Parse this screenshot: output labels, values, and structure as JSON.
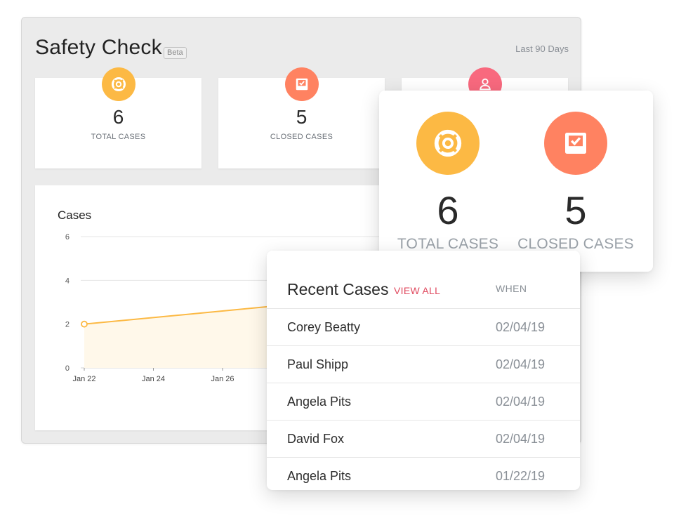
{
  "header": {
    "title": "Safety Check",
    "beta_label": "Beta",
    "range_label": "Last 90 Days"
  },
  "stats": [
    {
      "value": "6",
      "label": "TOTAL CASES",
      "icon": "life-ring-icon",
      "color": "#fcb944"
    },
    {
      "value": "5",
      "label": "CLOSED CASES",
      "icon": "inbox-check-icon",
      "color": "#ff8261"
    },
    {
      "icon": "user-icon",
      "color": "#f8697e"
    }
  ],
  "chart": {
    "title": "Cases"
  },
  "chart_data": {
    "type": "area",
    "title": "Cases",
    "x_ticks": [
      "Jan 22",
      "Jan 24",
      "Jan 26"
    ],
    "y_ticks": [
      "0",
      "2",
      "4",
      "6"
    ],
    "ylim": [
      0,
      6
    ],
    "grid": true,
    "series": [
      {
        "x": [
          "Jan 22",
          "Jan 28"
        ],
        "values": [
          2,
          2.9
        ],
        "color": "#fcb944"
      }
    ]
  },
  "popup": {
    "stats": [
      {
        "value": "6",
        "label": "TOTAL CASES",
        "icon": "life-ring-icon",
        "color": "#fcb944"
      },
      {
        "value": "5",
        "label": "CLOSED CASES",
        "icon": "inbox-check-icon",
        "color": "#ff8261"
      }
    ]
  },
  "recent": {
    "title": "Recent Cases",
    "view_all": "VIEW ALL",
    "when_header": "WHEN",
    "rows": [
      {
        "name": "Corey Beatty",
        "date": "02/04/19"
      },
      {
        "name": "Paul Shipp",
        "date": "02/04/19"
      },
      {
        "name": "Angela Pits",
        "date": "02/04/19"
      },
      {
        "name": "David Fox",
        "date": "02/04/19"
      },
      {
        "name": "Angela Pits",
        "date": "01/22/19"
      }
    ]
  }
}
